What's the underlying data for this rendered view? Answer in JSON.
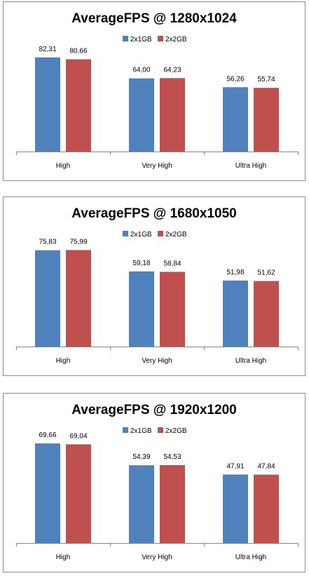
{
  "colors": {
    "series_1": "#4f81bd",
    "series_2": "#c0504d",
    "axis": "#868686"
  },
  "chart_data": [
    {
      "type": "bar",
      "title": "AverageFPS @ 1280x1024",
      "categories": [
        "High",
        "Very High",
        "Ultra High"
      ],
      "series": [
        {
          "name": "2x1GB",
          "values": [
            82.31,
            64.0,
            56.26
          ],
          "labels": [
            "82,31",
            "64,00",
            "56,26"
          ]
        },
        {
          "name": "2x2GB",
          "values": [
            80.66,
            64.23,
            55.74
          ],
          "labels": [
            "80,66",
            "64,23",
            "55,74"
          ]
        }
      ],
      "ylim": [
        0,
        100
      ],
      "grid": false,
      "legend": "top-center"
    },
    {
      "type": "bar",
      "title": "AverageFPS @ 1680x1050",
      "categories": [
        "High",
        "Very High",
        "Ultra High"
      ],
      "series": [
        {
          "name": "2x1GB",
          "values": [
            75.83,
            59.18,
            51.98
          ],
          "labels": [
            "75,83",
            "59,18",
            "51,98"
          ]
        },
        {
          "name": "2x2GB",
          "values": [
            75.99,
            58.84,
            51.62
          ],
          "labels": [
            "75,99",
            "58,84",
            "51,62"
          ]
        }
      ],
      "ylim": [
        0,
        90
      ],
      "grid": false,
      "legend": "top-center"
    },
    {
      "type": "bar",
      "title": "AverageFPS @ 1920x1200",
      "categories": [
        "High",
        "Very High",
        "Ultra High"
      ],
      "series": [
        {
          "name": "2x1GB",
          "values": [
            69.66,
            54.39,
            47.91
          ],
          "labels": [
            "69,66",
            "54,39",
            "47,91"
          ]
        },
        {
          "name": "2x2GB",
          "values": [
            69.04,
            54.53,
            47.84
          ],
          "labels": [
            "69,04",
            "54,53",
            "47,84"
          ]
        }
      ],
      "ylim": [
        0,
        80
      ],
      "grid": false,
      "legend": "top-center"
    }
  ]
}
